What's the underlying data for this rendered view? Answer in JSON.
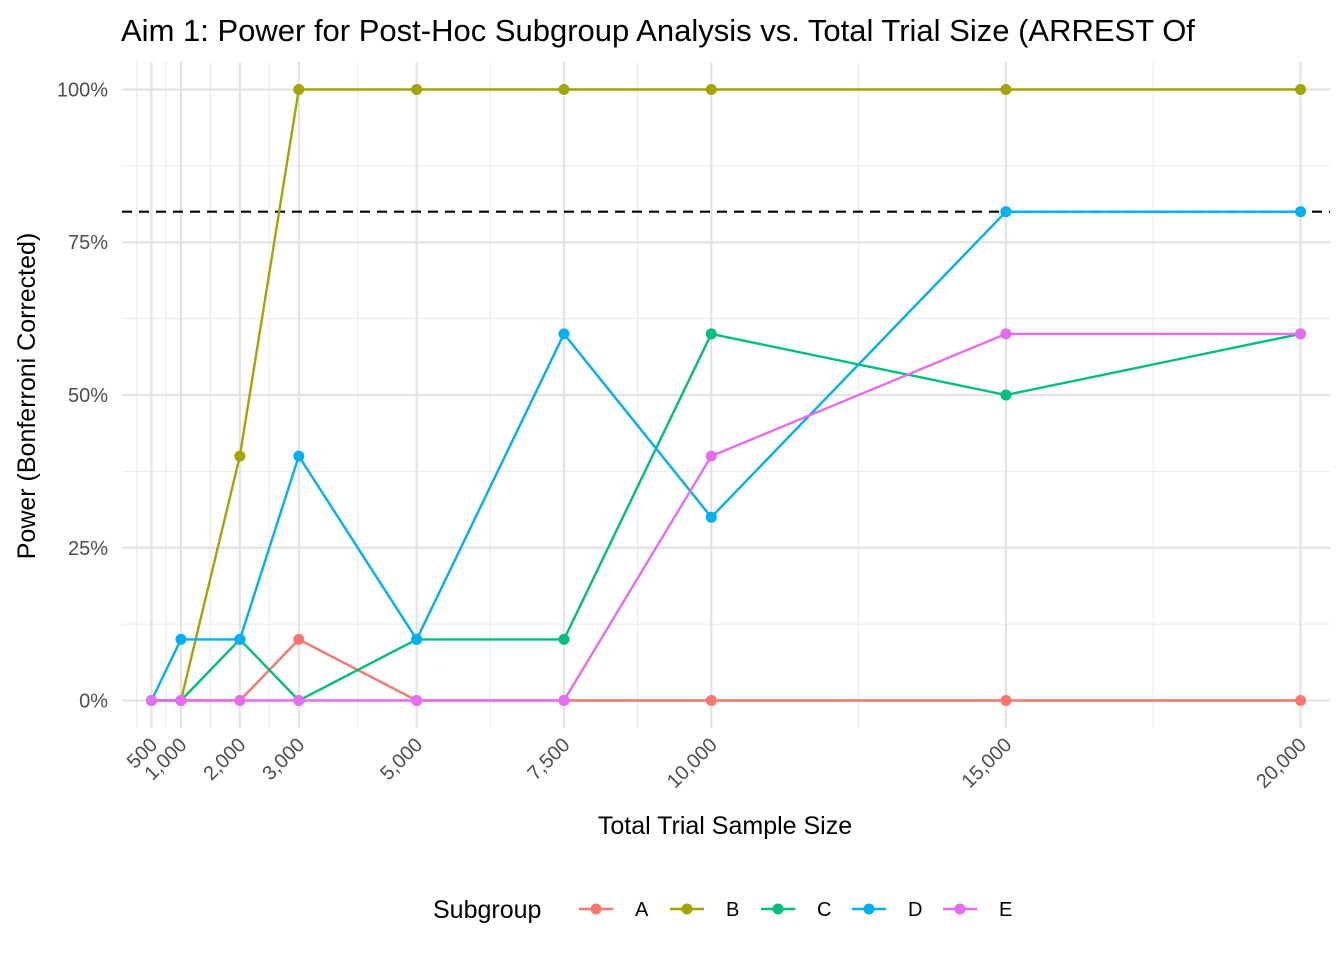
{
  "chart_data": {
    "type": "line",
    "title": "Aim 1: Power for Post-Hoc Subgroup Analysis vs. Total Trial Size (ARREST Of",
    "xlabel": "Total Trial Sample Size",
    "ylabel": "Power (Bonferroni Corrected)",
    "x": [
      500,
      1000,
      2000,
      3000,
      5000,
      7500,
      10000,
      15000,
      20000
    ],
    "x_tick_labels": [
      "500",
      "1,000",
      "2,000",
      "3,000",
      "5,000",
      "7,500",
      "10,000",
      "15,000",
      "20,000"
    ],
    "y_ticks": [
      0,
      0.25,
      0.5,
      0.75,
      1.0
    ],
    "y_tick_labels": [
      "0%",
      "25%",
      "50%",
      "75%",
      "100%"
    ],
    "ylim": [
      -0.045,
      1.045
    ],
    "xlim": [
      0,
      20500
    ],
    "reference_line": {
      "y": 0.8,
      "style": "dashed",
      "color": "#000000"
    },
    "grid": true,
    "legend_title": "Subgroup",
    "legend_position": "bottom",
    "series": [
      {
        "name": "A",
        "color": "#F8766D",
        "values": [
          0,
          0,
          0,
          0.1,
          0,
          0,
          0,
          0,
          0
        ]
      },
      {
        "name": "B",
        "color": "#A3A500",
        "values": [
          0,
          0,
          0.4,
          1.0,
          1.0,
          1.0,
          1.0,
          1.0,
          1.0
        ]
      },
      {
        "name": "C",
        "color": "#00BF7D",
        "values": [
          0,
          0,
          0.1,
          0,
          0.1,
          0.1,
          0.6,
          0.5,
          0.6
        ]
      },
      {
        "name": "D",
        "color": "#00B0F6",
        "values": [
          0,
          0.1,
          0.1,
          0.4,
          0.1,
          0.6,
          0.3,
          0.8,
          0.8
        ]
      },
      {
        "name": "E",
        "color": "#E76BF3",
        "values": [
          0,
          0,
          0,
          0,
          0,
          0,
          0.4,
          0.6,
          0.6
        ]
      }
    ]
  }
}
